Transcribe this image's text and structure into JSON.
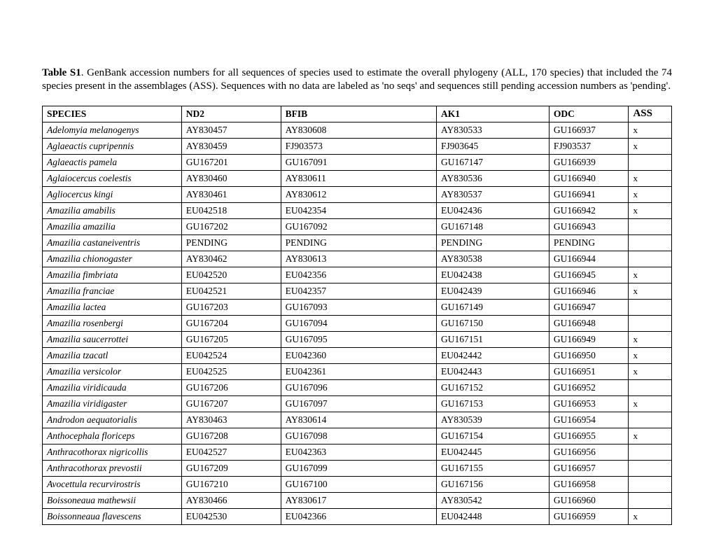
{
  "caption": {
    "lead": "Table S1",
    "text": ". GenBank accession numbers for all sequences of species used to estimate the overall phylogeny (ALL, 170 species) that included the 74 species present in the assemblages (ASS). Sequences with no data are labeled as 'no seqs' and sequences still pending accession numbers as 'pending'."
  },
  "table": {
    "columns": [
      "SPECIES",
      "ND2",
      "BFIB",
      "AK1",
      "ODC",
      "ASS"
    ],
    "rows": [
      [
        "Adelomyia melanogenys",
        "AY830457",
        "AY830608",
        "AY830533",
        "GU166937",
        "x"
      ],
      [
        "Aglaeactis cupripennis",
        "AY830459",
        "FJ903573",
        "FJ903645",
        "FJ903537",
        "x"
      ],
      [
        "Aglaeactis pamela",
        "GU167201",
        "GU167091",
        "GU167147",
        "GU166939",
        ""
      ],
      [
        "Aglaiocercus coelestis",
        "AY830460",
        "AY830611",
        "AY830536",
        "GU166940",
        "x"
      ],
      [
        "Agliocercus kingi",
        "AY830461",
        "AY830612",
        "AY830537",
        "GU166941",
        "x"
      ],
      [
        "Amazilia amabilis",
        "EU042518",
        "EU042354",
        "EU042436",
        "GU166942",
        "x"
      ],
      [
        "Amazilia amazilia",
        "GU167202",
        "GU167092",
        "GU167148",
        "GU166943",
        ""
      ],
      [
        "Amazilia castaneiventris",
        "PENDING",
        "PENDING",
        "PENDING",
        "PENDING",
        ""
      ],
      [
        "Amazilia chionogaster",
        "AY830462",
        "AY830613",
        "AY830538",
        "GU166944",
        ""
      ],
      [
        "Amazilia fimbriata",
        "EU042520",
        "EU042356",
        "EU042438",
        "GU166945",
        "x"
      ],
      [
        "Amazilia franciae",
        "EU042521",
        "EU042357",
        "EU042439",
        "GU166946",
        "x"
      ],
      [
        "Amazilia lactea",
        "GU167203",
        "GU167093",
        "GU167149",
        "GU166947",
        ""
      ],
      [
        "Amazilia rosenbergi",
        "GU167204",
        "GU167094",
        "GU167150",
        "GU166948",
        ""
      ],
      [
        "Amazilia saucerrottei",
        "GU167205",
        "GU167095",
        "GU167151",
        "GU166949",
        "x"
      ],
      [
        "Amazilia tzacatl",
        "EU042524",
        "EU042360",
        "EU042442",
        "GU166950",
        "x"
      ],
      [
        "Amazilia versicolor",
        "EU042525",
        "EU042361",
        "EU042443",
        "GU166951",
        "x"
      ],
      [
        "Amazilia viridicauda",
        "GU167206",
        "GU167096",
        "GU167152",
        "GU166952",
        ""
      ],
      [
        "Amazilia viridigaster",
        "GU167207",
        "GU167097",
        "GU167153",
        "GU166953",
        "x"
      ],
      [
        "Androdon aequatorialis",
        "AY830463",
        "AY830614",
        "AY830539",
        "GU166954",
        ""
      ],
      [
        "Anthocephala floriceps",
        "GU167208",
        "GU167098",
        "GU167154",
        "GU166955",
        "x"
      ],
      [
        "Anthracothorax nigricollis",
        "EU042527",
        "EU042363",
        "EU042445",
        "GU166956",
        ""
      ],
      [
        "Anthracothorax prevostii",
        "GU167209",
        "GU167099",
        "GU167155",
        "GU166957",
        ""
      ],
      [
        "Avocettula recurvirostris",
        "GU167210",
        "GU167100",
        "GU167156",
        "GU166958",
        ""
      ],
      [
        "Boissoneaua mathewsii",
        "AY830466",
        "AY830617",
        "AY830542",
        "GU166960",
        ""
      ],
      [
        "Boissonneaua flavescens",
        "EU042530",
        "EU042366",
        "EU042448",
        "GU166959",
        "x"
      ]
    ]
  }
}
